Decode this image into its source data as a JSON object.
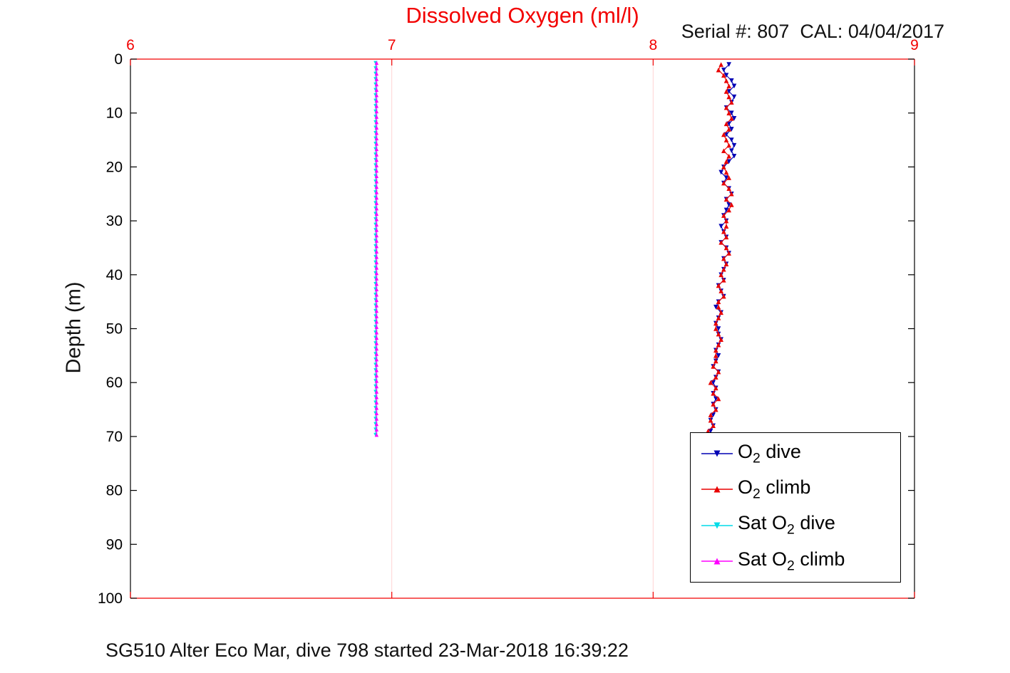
{
  "chart_data": {
    "type": "line",
    "title": "Dissolved Oxygen (ml/l)",
    "subtitle": "Serial #: 807  CAL: 04/04/2017",
    "footnote": "SG510 Alter Eco Mar, dive 798 started 23-Mar-2018 16:39:22",
    "xlabel": "Dissolved Oxygen (ml/l)",
    "ylabel": "Depth (m)",
    "xlim": [
      6,
      9
    ],
    "ylim": [
      0,
      100
    ],
    "y_axis_direction": "depth-downward",
    "xticks": [
      6,
      7,
      8,
      9
    ],
    "yticks": [
      0,
      10,
      20,
      30,
      40,
      50,
      60,
      70,
      80,
      90,
      100
    ],
    "grid": "vertical-only",
    "legend_position": "inside-bottom-right",
    "colors": {
      "title": "#f20000",
      "x_axis": "#f20000",
      "y_axis": "#000000",
      "grid": "#ffd2d2",
      "background": "#ffffff",
      "o2_dive": "#0000b4",
      "o2_climb": "#e80000",
      "sat_o2_dive": "#00dce8",
      "sat_o2_climb": "#ff00ff"
    },
    "series": [
      {
        "name": "O2 dive",
        "label": {
          "pre": "O",
          "sub": "2",
          "post": " dive"
        },
        "color": "#0000b4",
        "marker": "triangle-down",
        "depths": {
          "from": 1,
          "to": 69,
          "step": 1
        },
        "values": [
          8.29,
          8.27,
          8.28,
          8.3,
          8.31,
          8.29,
          8.31,
          8.3,
          8.28,
          8.3,
          8.31,
          8.29,
          8.3,
          8.28,
          8.3,
          8.31,
          8.3,
          8.31,
          8.29,
          8.27,
          8.26,
          8.28,
          8.27,
          8.29,
          8.3,
          8.28,
          8.29,
          8.28,
          8.27,
          8.28,
          8.26,
          8.27,
          8.28,
          8.26,
          8.28,
          8.29,
          8.27,
          8.28,
          8.27,
          8.26,
          8.27,
          8.25,
          8.26,
          8.27,
          8.25,
          8.24,
          8.26,
          8.25,
          8.24,
          8.25,
          8.25,
          8.26,
          8.25,
          8.24,
          8.25,
          8.24,
          8.23,
          8.25,
          8.24,
          8.23,
          8.24,
          8.23,
          8.24,
          8.23,
          8.24,
          8.23,
          8.22,
          8.23,
          8.22
        ]
      },
      {
        "name": "O2 climb",
        "label": {
          "pre": "O",
          "sub": "2",
          "post": " climb"
        },
        "color": "#e80000",
        "marker": "triangle-up",
        "depths": {
          "from": 1,
          "to": 69,
          "step": 1
        },
        "values": [
          8.26,
          8.25,
          8.27,
          8.28,
          8.29,
          8.28,
          8.29,
          8.3,
          8.28,
          8.29,
          8.3,
          8.28,
          8.29,
          8.27,
          8.28,
          8.29,
          8.27,
          8.29,
          8.28,
          8.27,
          8.28,
          8.29,
          8.27,
          8.29,
          8.3,
          8.28,
          8.3,
          8.29,
          8.27,
          8.28,
          8.28,
          8.27,
          8.28,
          8.26,
          8.28,
          8.29,
          8.27,
          8.28,
          8.27,
          8.26,
          8.27,
          8.25,
          8.26,
          8.27,
          8.25,
          8.25,
          8.26,
          8.25,
          8.24,
          8.24,
          8.25,
          8.26,
          8.25,
          8.24,
          8.24,
          8.24,
          8.23,
          8.25,
          8.24,
          8.22,
          8.24,
          8.23,
          8.25,
          8.23,
          8.24,
          8.22,
          8.22,
          8.23,
          8.21
        ]
      },
      {
        "name": "Sat O2 dive",
        "label": {
          "pre": "Sat O",
          "sub": "2",
          "post": " dive"
        },
        "color": "#00dce8",
        "marker": "triangle-down",
        "depths": {
          "from": 0.7,
          "to": 69.7,
          "step": 1
        },
        "value": 6.938
      },
      {
        "name": "Sat O2 climb",
        "label": {
          "pre": "Sat O",
          "sub": "2",
          "post": " climb"
        },
        "color": "#ff00ff",
        "marker": "triangle-up",
        "depths": {
          "from": 0.7,
          "to": 69.7,
          "step": 1
        },
        "value": 6.942
      }
    ]
  }
}
